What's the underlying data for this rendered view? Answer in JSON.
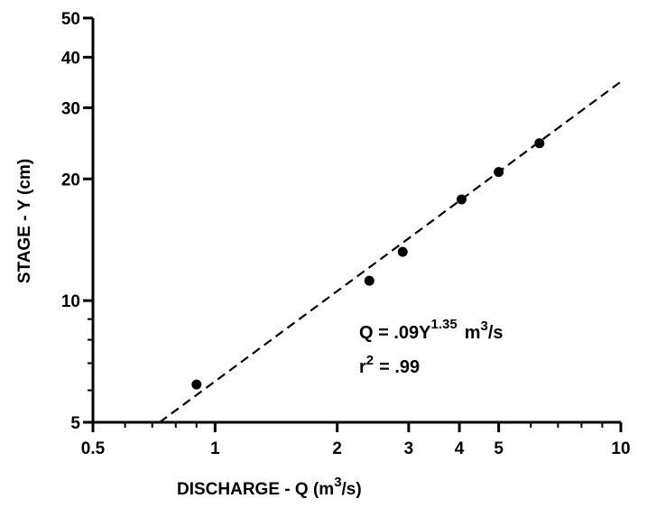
{
  "chart_data": {
    "type": "scatter",
    "title": "",
    "xlabel": {
      "main": "DISCHARGE - Q (m",
      "sup": "3",
      "slash": "/s)"
    },
    "ylabel": "STAGE - Y (cm)",
    "xscale": "log",
    "yscale": "log",
    "xlim": [
      0.5,
      10
    ],
    "ylim": [
      5,
      50
    ],
    "xticks": [
      {
        "value": 0.5,
        "label": "0.5"
      },
      {
        "value": 1,
        "label": "1"
      },
      {
        "value": 2,
        "label": "2"
      },
      {
        "value": 3,
        "label": "3"
      },
      {
        "value": 4,
        "label": "4"
      },
      {
        "value": 5,
        "label": "5"
      },
      {
        "value": 10,
        "label": "10"
      }
    ],
    "yticks": [
      {
        "value": 5,
        "label": "5"
      },
      {
        "value": 10,
        "label": "10"
      },
      {
        "value": 20,
        "label": "20"
      },
      {
        "value": 30,
        "label": "30"
      },
      {
        "value": 40,
        "label": "40"
      },
      {
        "value": 50,
        "label": "50"
      }
    ],
    "grid": false,
    "points": [
      {
        "x": 0.9,
        "y": 6.2
      },
      {
        "x": 2.4,
        "y": 11.2
      },
      {
        "x": 2.9,
        "y": 13.2
      },
      {
        "x": 4.05,
        "y": 17.8
      },
      {
        "x": 5.0,
        "y": 20.8
      },
      {
        "x": 6.3,
        "y": 24.5
      }
    ],
    "fit_line": {
      "style": "dashed",
      "x": [
        0.73,
        10
      ],
      "y": [
        5.0,
        34.8
      ]
    },
    "annotations": {
      "equation_prefix": "Q = .09Y",
      "equation_exponent": "1.35",
      "equation_unit_main": "m",
      "equation_unit_sup": "3",
      "equation_unit_tail": "/s",
      "r2_prefix": "r",
      "r2_sup": "2",
      "r2_value": "= .99"
    },
    "colors": {
      "ink": "#000000",
      "background": "#ffffff"
    }
  }
}
